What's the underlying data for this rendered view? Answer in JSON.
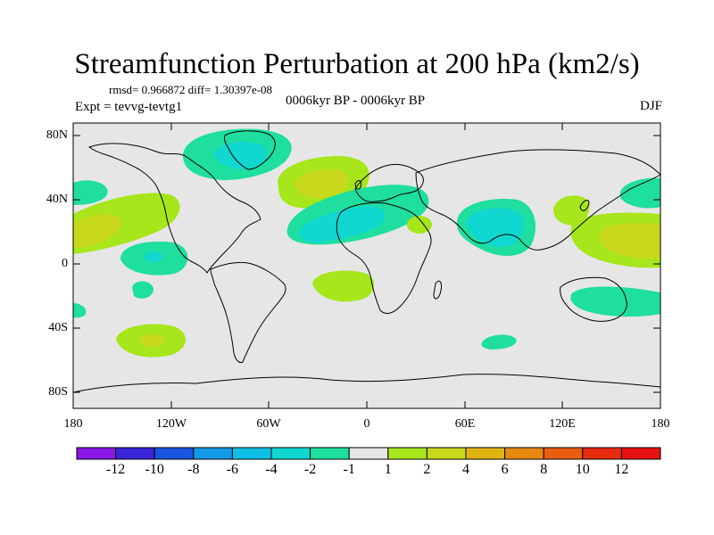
{
  "title": "Streamfunction Perturbation at 200 hPa (km2/s)",
  "stats_line": "rmsd= 0.966872 diff= 1.30397e-08",
  "left_label": "Expt = tevvg-tevtg1",
  "center_label": "0006kyr BP - 0006kyr BP",
  "right_label": "DJF",
  "lat_labels": [
    "80N",
    "40N",
    "0",
    "40S",
    "80S"
  ],
  "lon_labels": [
    "180",
    "120W",
    "60W",
    "0",
    "60E",
    "120E",
    "180"
  ],
  "colorbar": {
    "labels": [
      "-12",
      "-10",
      "-8",
      "-6",
      "-4",
      "-2",
      "-1",
      "1",
      "2",
      "4",
      "6",
      "8",
      "10",
      "12"
    ],
    "colors": [
      "#8a17e6",
      "#3a24d8",
      "#1a55e0",
      "#1299e8",
      "#10bfe6",
      "#10d8d0",
      "#1edea0",
      "#e6e6e6",
      "#a6e61a",
      "#c8d81a",
      "#e0b410",
      "#e88a10",
      "#e85e10",
      "#e82c10",
      "#e81010"
    ]
  },
  "colors": {
    "land_ocean": "#e6e6e6",
    "neg1": "#1edea0",
    "neg2": "#10d8d0",
    "pos1": "#a6e61a",
    "pos2": "#c8d81a",
    "pos3": "#e0b410"
  }
}
